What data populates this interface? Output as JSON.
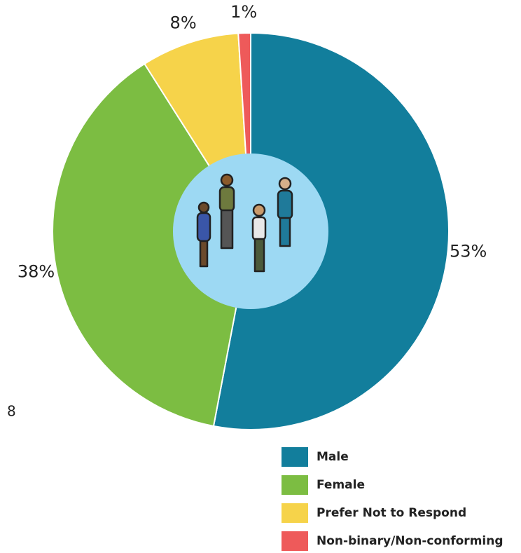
{
  "chart_data": {
    "type": "pie",
    "hole": true,
    "categories": [
      "Male",
      "Female",
      "Prefer Not to Respond",
      "Non-binary/Non-conforming"
    ],
    "values": [
      53,
      38,
      8,
      1
    ],
    "value_labels": [
      "53%",
      "38%",
      "8%",
      "1%"
    ],
    "colors": [
      "#127e9c",
      "#7cbd42",
      "#f6d34a",
      "#ee5a5a"
    ],
    "legend": "bottom-right",
    "annotations": [
      "8"
    ]
  }
}
